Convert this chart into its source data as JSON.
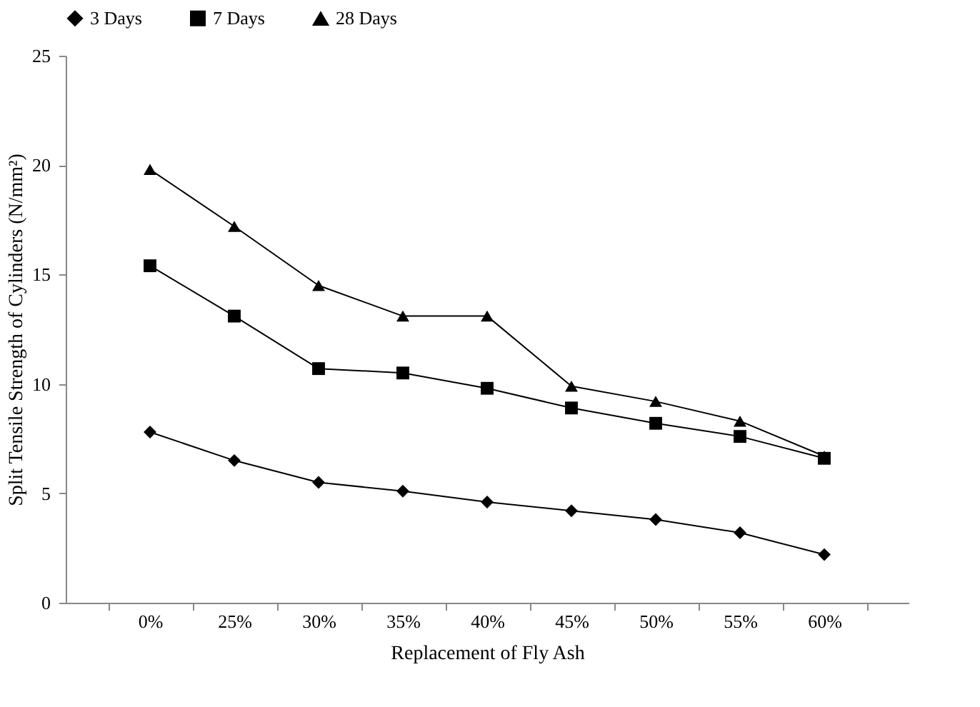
{
  "chart_data": {
    "type": "line",
    "xlabel": "Replacement of Fly Ash",
    "ylabel": "Split Tensile Strength of Cylinders (N/mm²)",
    "categories": [
      "0%",
      "25%",
      "30%",
      "35%",
      "40%",
      "45%",
      "50%",
      "55%",
      "60%"
    ],
    "series": [
      {
        "name": "3 Days",
        "color": "#000000",
        "marker": "diamond",
        "values": [
          7.8,
          6.5,
          5.5,
          5.1,
          4.6,
          4.2,
          3.8,
          3.2,
          2.2
        ]
      },
      {
        "name": "7 Days",
        "color": "#000000",
        "marker": "square",
        "values": [
          15.4,
          13.1,
          10.7,
          10.5,
          9.8,
          8.9,
          8.2,
          7.6,
          6.6
        ]
      },
      {
        "name": "28 Days",
        "color": "#000000",
        "marker": "triangle",
        "values": [
          19.8,
          17.2,
          14.5,
          13.1,
          13.1,
          9.9,
          9.2,
          8.3,
          6.7
        ]
      }
    ],
    "ylim": [
      0,
      25
    ],
    "yticks": [
      0,
      5,
      10,
      15,
      20,
      25
    ],
    "grid": false,
    "legend": "top"
  }
}
